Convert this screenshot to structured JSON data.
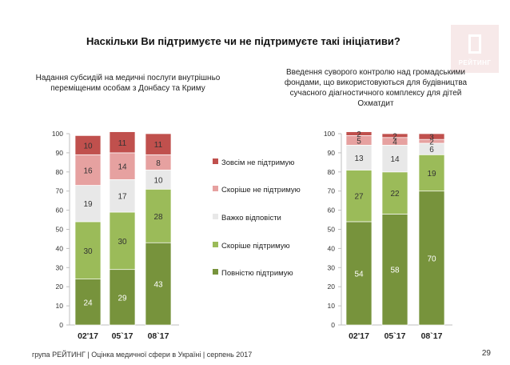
{
  "header": {
    "title": "Наскільки Ви підтримуєте чи не підтримуєте такі ініціативи?",
    "logo_text": "РЕЙТИНГ"
  },
  "colors": {
    "fully_not_support": "#c0504d",
    "rather_not_support": "#e6a1a0",
    "hard_to_say": "#e8e8e8",
    "rather_support": "#9bbb59",
    "fully_support": "#77933c"
  },
  "legend": [
    {
      "label": "Зовсім не підтримую",
      "color_key": "fully_not_support"
    },
    {
      "label": "Скоріше не підтримую",
      "color_key": "rather_not_support"
    },
    {
      "label": "Важко відповісти",
      "color_key": "hard_to_say"
    },
    {
      "label": "Скоріше підтримую",
      "color_key": "rather_support"
    },
    {
      "label": "Повністю підтримую",
      "color_key": "fully_support"
    }
  ],
  "chart_data": [
    {
      "type": "bar",
      "stacked": true,
      "title": "Надання субсидій на медичні послуги внутрішньо переміщеним особам з Донбасу та Криму",
      "categories": [
        "02'17",
        "05`17",
        "08`17"
      ],
      "ylim": [
        0,
        100
      ],
      "yticks": [
        0,
        10,
        20,
        30,
        40,
        50,
        60,
        70,
        80,
        90,
        100
      ],
      "series": [
        {
          "name": "Повністю підтримую",
          "color_key": "fully_support",
          "values": [
            24,
            29,
            43
          ]
        },
        {
          "name": "Скоріше підтримую",
          "color_key": "rather_support",
          "values": [
            30,
            30,
            28
          ]
        },
        {
          "name": "Важко відповісти",
          "color_key": "hard_to_say",
          "values": [
            19,
            17,
            10
          ]
        },
        {
          "name": "Скоріше не підтримую",
          "color_key": "rather_not_support",
          "values": [
            16,
            14,
            8
          ]
        },
        {
          "name": "Зовсім не підтримую",
          "color_key": "fully_not_support",
          "values": [
            10,
            11,
            11
          ]
        }
      ]
    },
    {
      "type": "bar",
      "stacked": true,
      "title": "Введення суворого контролю над громадськими фондами, що використовуються для будівництва сучасного діагностичного комплексу для дітей Охматдит",
      "categories": [
        "02'17",
        "05`17",
        "08`17"
      ],
      "ylim": [
        0,
        100
      ],
      "yticks": [
        0,
        10,
        20,
        30,
        40,
        50,
        60,
        70,
        80,
        90,
        100
      ],
      "series": [
        {
          "name": "Повністю підтримую",
          "color_key": "fully_support",
          "values": [
            54,
            58,
            70
          ]
        },
        {
          "name": "Скоріше підтримую",
          "color_key": "rather_support",
          "values": [
            27,
            22,
            19
          ]
        },
        {
          "name": "Важко відповісти",
          "color_key": "hard_to_say",
          "values": [
            13,
            14,
            6
          ]
        },
        {
          "name": "Скоріше не підтримую",
          "color_key": "rather_not_support",
          "values": [
            5,
            4,
            2
          ]
        },
        {
          "name": "Зовсім не підтримую",
          "color_key": "fully_not_support",
          "values": [
            2,
            2,
            3
          ]
        }
      ]
    }
  ],
  "footer": {
    "text": "група РЕЙТИНГ  |  Оцінка медичної сфери в Україні  |  серпень 2017",
    "page_number": "29"
  }
}
